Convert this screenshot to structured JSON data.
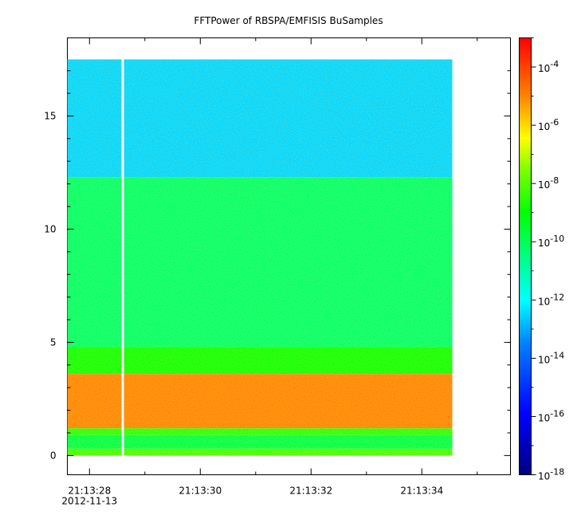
{
  "chart_data": {
    "type": "heatmap",
    "title": "FFTPower of RBSPA/EMFISIS  BuSamples",
    "xlabel": "",
    "ylabel": "",
    "x_ticks": [
      {
        "value": 28,
        "label": "21:13:28",
        "sublabel": "2012-11-13"
      },
      {
        "value": 30,
        "label": "21:13:30"
      },
      {
        "value": 32,
        "label": "21:13:32"
      },
      {
        "value": 34,
        "label": "21:13:34"
      }
    ],
    "x_minor_ticks": [
      29,
      31,
      33,
      35
    ],
    "xlim": [
      27.6,
      35.6
    ],
    "data_x_range": [
      27.6,
      34.55
    ],
    "gap_x": 28.6,
    "y_ticks": [
      {
        "value": 0,
        "label": "0"
      },
      {
        "value": 5,
        "label": "5"
      },
      {
        "value": 10,
        "label": "10"
      },
      {
        "value": 15,
        "label": "15"
      }
    ],
    "ylim": [
      -0.85,
      18.45
    ],
    "data_y_range": [
      0,
      17.5
    ],
    "colorbar": {
      "scale": "log",
      "range": [
        1e-18,
        0.001
      ],
      "ticks": [
        {
          "value": -18,
          "base": "10",
          "exp": "-18"
        },
        {
          "value": -16,
          "base": "10",
          "exp": "-16"
        },
        {
          "value": -14,
          "base": "10",
          "exp": "-14"
        },
        {
          "value": -12,
          "base": "10",
          "exp": "-12"
        },
        {
          "value": -10,
          "base": "10",
          "exp": "-10"
        },
        {
          "value": -8,
          "base": "10",
          "exp": "-8"
        },
        {
          "value": -6,
          "base": "10",
          "exp": "-6"
        },
        {
          "value": -4,
          "base": "10",
          "exp": "-4"
        }
      ],
      "colormap": "rainbow"
    },
    "power_bands": [
      {
        "y_from": 12.3,
        "y_to": 17.5,
        "log_power": -12.5
      },
      {
        "y_from": 4.8,
        "y_to": 12.3,
        "log_power": -10.2
      },
      {
        "y_from": 3.6,
        "y_to": 4.8,
        "log_power": -8.8
      },
      {
        "y_from": 1.2,
        "y_to": 3.6,
        "log_power": -5.0
      },
      {
        "y_from": 0.9,
        "y_to": 1.2,
        "log_power": -8.5
      },
      {
        "y_from": 0.3,
        "y_to": 0.9,
        "log_power": -9.8
      },
      {
        "y_from": 0.0,
        "y_to": 0.3,
        "log_power": -8.2
      }
    ],
    "grid": false,
    "legend": "right"
  }
}
